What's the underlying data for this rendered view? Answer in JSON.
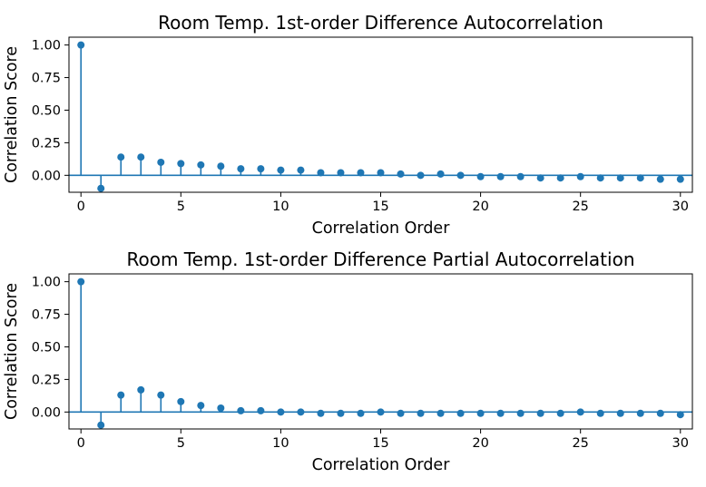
{
  "chart_data": [
    {
      "type": "stem",
      "title": "Room Temp. 1st-order Difference Autocorrelation",
      "xlabel": "Correlation Order",
      "ylabel": "Correlation Score",
      "xlim": [
        -0.6,
        30.6
      ],
      "ylim": [
        -0.13,
        1.06
      ],
      "xticks": [
        0,
        5,
        10,
        15,
        20,
        25,
        30
      ],
      "yticks": [
        "0.00",
        "0.25",
        "0.50",
        "0.75",
        "1.00"
      ],
      "baseline": 0,
      "color": "#1f77b4",
      "x": [
        0,
        1,
        2,
        3,
        4,
        5,
        6,
        7,
        8,
        9,
        10,
        11,
        12,
        13,
        14,
        15,
        16,
        17,
        18,
        19,
        20,
        21,
        22,
        23,
        24,
        25,
        26,
        27,
        28,
        29,
        30
      ],
      "y": [
        1.0,
        -0.1,
        0.14,
        0.14,
        0.1,
        0.09,
        0.08,
        0.07,
        0.05,
        0.05,
        0.04,
        0.04,
        0.02,
        0.02,
        0.02,
        0.02,
        0.01,
        0.0,
        0.01,
        0.0,
        -0.01,
        -0.01,
        -0.01,
        -0.02,
        -0.02,
        -0.01,
        -0.02,
        -0.02,
        -0.02,
        -0.03,
        -0.03
      ]
    },
    {
      "type": "stem",
      "title": "Room Temp. 1st-order Difference Partial Autocorrelation",
      "xlabel": "Correlation Order",
      "ylabel": "Correlation Score",
      "xlim": [
        -0.6,
        30.6
      ],
      "ylim": [
        -0.13,
        1.06
      ],
      "xticks": [
        0,
        5,
        10,
        15,
        20,
        25,
        30
      ],
      "yticks": [
        "0.00",
        "0.25",
        "0.50",
        "0.75",
        "1.00"
      ],
      "baseline": 0,
      "color": "#1f77b4",
      "x": [
        0,
        1,
        2,
        3,
        4,
        5,
        6,
        7,
        8,
        9,
        10,
        11,
        12,
        13,
        14,
        15,
        16,
        17,
        18,
        19,
        20,
        21,
        22,
        23,
        24,
        25,
        26,
        27,
        28,
        29,
        30
      ],
      "y": [
        1.0,
        -0.1,
        0.13,
        0.17,
        0.13,
        0.08,
        0.05,
        0.03,
        0.01,
        0.01,
        0.0,
        0.0,
        -0.01,
        -0.01,
        -0.01,
        0.0,
        -0.01,
        -0.01,
        -0.01,
        -0.01,
        -0.01,
        -0.01,
        -0.01,
        -0.01,
        -0.01,
        0.0,
        -0.01,
        -0.01,
        -0.01,
        -0.01,
        -0.02
      ]
    }
  ]
}
